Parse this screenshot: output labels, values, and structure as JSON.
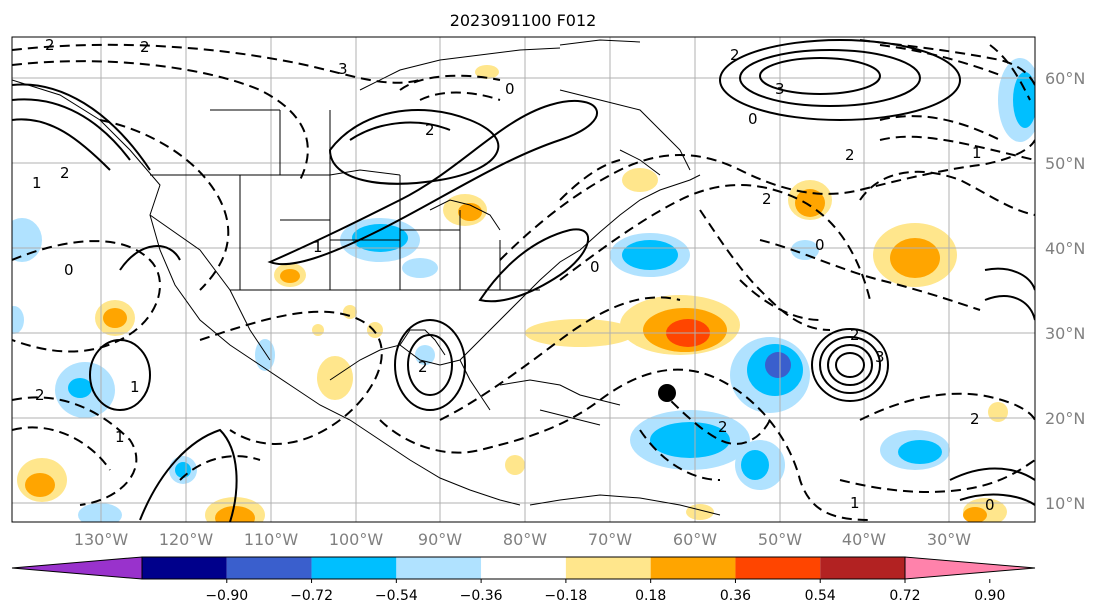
{
  "title": "2023091100 F012",
  "lon_labels": [
    "130°W",
    "120°W",
    "110°W",
    "100°W",
    "90°W",
    "80°W",
    "70°W",
    "60°W",
    "50°W",
    "40°W",
    "30°W"
  ],
  "lat_labels": [
    "60°N",
    "50°N",
    "40°N",
    "30°N",
    "20°N",
    "10°N"
  ],
  "colorbar": {
    "ticks": [
      "−0.90",
      "−0.72",
      "−0.54",
      "−0.36",
      "−0.18",
      "0.18",
      "0.36",
      "0.54",
      "0.72",
      "0.90"
    ],
    "colors": [
      "#9932cc",
      "#00008b",
      "#3a5fcd",
      "#00bfff",
      "#b0e2ff",
      "#ffffff",
      "#ffe68c",
      "#ffa500",
      "#ff4500",
      "#b22222",
      "#ff82ab"
    ]
  },
  "contour_labels": [
    "2",
    "2",
    "3",
    "0",
    "2",
    "2",
    "3",
    "0",
    "2",
    "1",
    "1",
    "2",
    "0",
    "1",
    "1",
    "2",
    "2",
    "0",
    "2",
    "3",
    "2",
    "2",
    "1",
    "0",
    "1",
    "2",
    "0"
  ],
  "marker": "storm-center"
}
